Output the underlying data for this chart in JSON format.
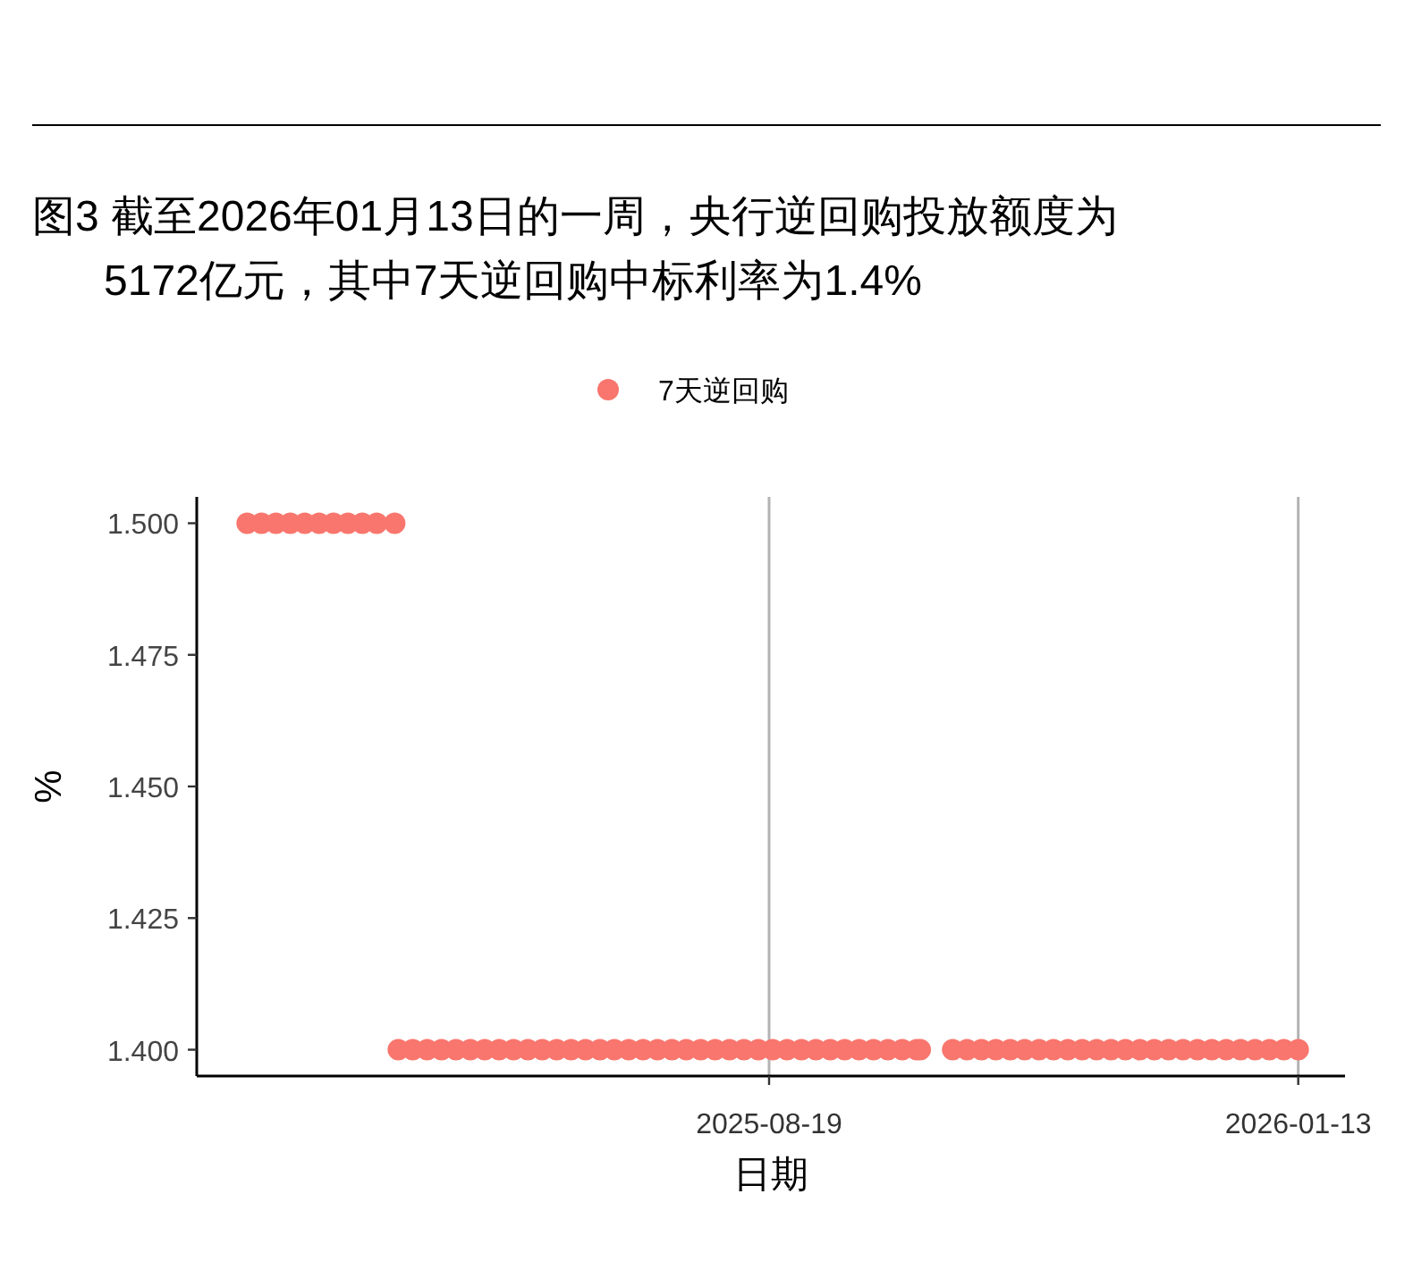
{
  "chart_data": {
    "type": "scatter",
    "title": "图3  截至2026年01月13日的一周，央行逆回购投放额度为5172亿元，其中7天逆回购中标利率为1.4%",
    "xlabel": "日期",
    "ylabel": "%",
    "x": [
      "2025-03-27",
      "2025-03-31",
      "2025-04-04",
      "2025-04-08",
      "2025-04-12",
      "2025-04-16",
      "2025-04-20",
      "2025-04-24",
      "2025-04-28",
      "2025-05-02",
      "2025-05-07",
      "2025-05-08",
      "2025-05-12",
      "2025-05-16",
      "2025-05-20",
      "2025-05-24",
      "2025-05-28",
      "2025-06-01",
      "2025-06-05",
      "2025-06-09",
      "2025-06-13",
      "2025-06-17",
      "2025-06-21",
      "2025-06-25",
      "2025-06-29",
      "2025-07-03",
      "2025-07-07",
      "2025-07-11",
      "2025-07-15",
      "2025-07-19",
      "2025-07-23",
      "2025-07-27",
      "2025-07-31",
      "2025-08-04",
      "2025-08-08",
      "2025-08-12",
      "2025-08-16",
      "2025-08-20",
      "2025-08-24",
      "2025-08-28",
      "2025-09-01",
      "2025-09-05",
      "2025-09-09",
      "2025-09-13",
      "2025-09-17",
      "2025-09-21",
      "2025-09-25",
      "2025-09-29",
      "2025-09-30",
      "2025-10-09",
      "2025-10-13",
      "2025-10-17",
      "2025-10-21",
      "2025-10-25",
      "2025-10-29",
      "2025-11-02",
      "2025-11-06",
      "2025-11-10",
      "2025-11-14",
      "2025-11-18",
      "2025-11-22",
      "2025-11-26",
      "2025-11-30",
      "2025-12-04",
      "2025-12-08",
      "2025-12-12",
      "2025-12-16",
      "2025-12-20",
      "2025-12-24",
      "2025-12-28",
      "2026-01-01",
      "2026-01-05",
      "2026-01-09",
      "2026-01-13"
    ],
    "series": [
      {
        "name": "7天逆回购",
        "color": "#f8766d",
        "values": [
          1.5,
          1.5,
          1.5,
          1.5,
          1.5,
          1.5,
          1.5,
          1.5,
          1.5,
          1.5,
          1.5,
          1.4,
          1.4,
          1.4,
          1.4,
          1.4,
          1.4,
          1.4,
          1.4,
          1.4,
          1.4,
          1.4,
          1.4,
          1.4,
          1.4,
          1.4,
          1.4,
          1.4,
          1.4,
          1.4,
          1.4,
          1.4,
          1.4,
          1.4,
          1.4,
          1.4,
          1.4,
          1.4,
          1.4,
          1.4,
          1.4,
          1.4,
          1.4,
          1.4,
          1.4,
          1.4,
          1.4,
          1.4,
          1.4,
          1.4,
          1.4,
          1.4,
          1.4,
          1.4,
          1.4,
          1.4,
          1.4,
          1.4,
          1.4,
          1.4,
          1.4,
          1.4,
          1.4,
          1.4,
          1.4,
          1.4,
          1.4,
          1.4,
          1.4,
          1.4,
          1.4,
          1.4,
          1.4,
          1.4
        ]
      }
    ],
    "xlim": [
      "2025-03-13",
      "2026-01-26"
    ],
    "xticks": [
      "2025-08-19",
      "2026-01-13"
    ],
    "ylim": [
      1.395,
      1.505
    ],
    "yticks": [
      {
        "value": 1.4,
        "label": "1.400"
      },
      {
        "value": 1.425,
        "label": "1.425"
      },
      {
        "value": 1.45,
        "label": "1.450"
      },
      {
        "value": 1.475,
        "label": "1.475"
      },
      {
        "value": 1.5,
        "label": "1.500"
      }
    ],
    "grid": "x",
    "legend": "top",
    "marker": "circle"
  }
}
